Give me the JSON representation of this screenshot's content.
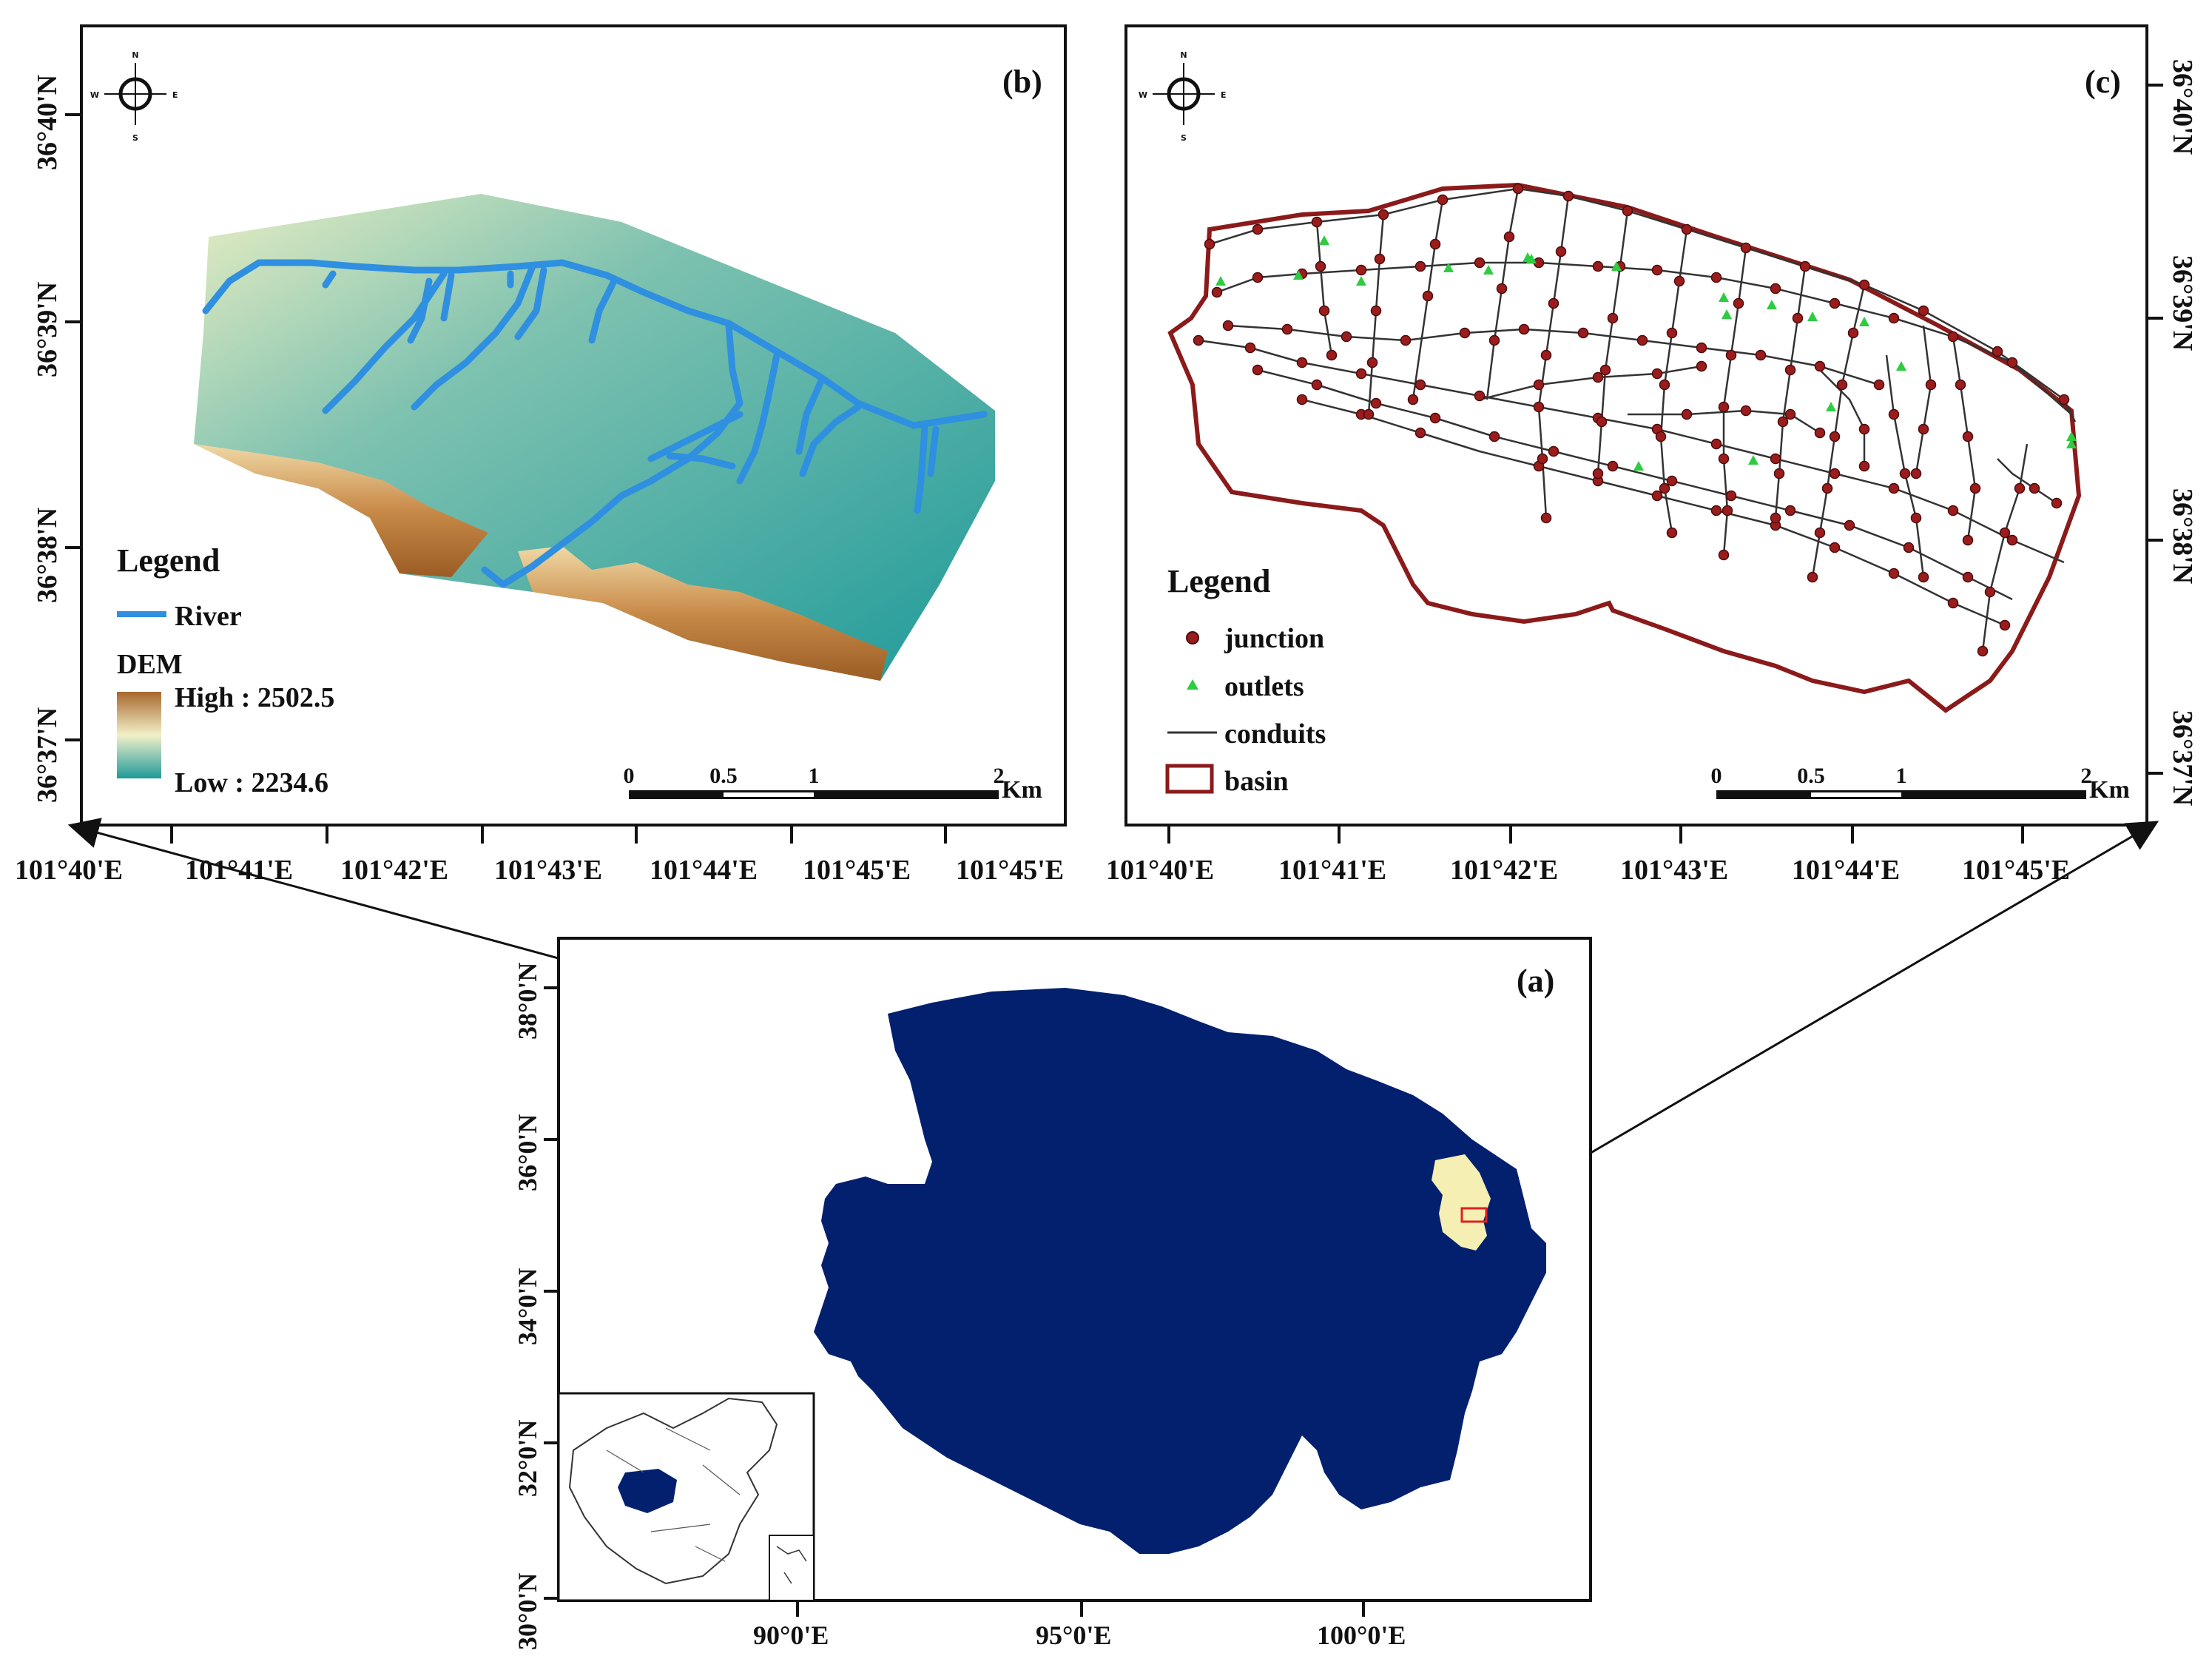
{
  "panel_b": {
    "label": "(b)",
    "legend_title": "Legend",
    "river_label": "River",
    "dem_label": "DEM",
    "dem_high": "High : 2502.5",
    "dem_low": "Low : 2234.6",
    "scale_ticks": [
      "0",
      "0.5",
      "1",
      "2"
    ],
    "scale_unit": "Km",
    "lon_labels": [
      "101°40'E",
      "101°41'E",
      "101°42'E",
      "101°43'E",
      "101°44'E",
      "101°45'E",
      "101°45'E"
    ],
    "lat_labels": [
      "36°40'N",
      "36°39'N",
      "36°38'N",
      "36°37'N"
    ],
    "colors": {
      "river": "#2f8fe0",
      "dem_high": "#a8682d",
      "dem_mid": "#f2f0c8",
      "dem_low": "#1f9a9a"
    }
  },
  "panel_c": {
    "label": "(c)",
    "legend_title": "Legend",
    "legend_items": [
      "junction",
      "outlets",
      "conduits",
      "basin"
    ],
    "scale_ticks": [
      "0",
      "0.5",
      "1",
      "2"
    ],
    "scale_unit": "Km",
    "lon_labels": [
      "101°40'E",
      "101°41'E",
      "101°42'E",
      "101°43'E",
      "101°44'E",
      "101°45'E"
    ],
    "lat_labels": [
      "36°40'N",
      "36°39'N",
      "36°38'N",
      "36°37'N"
    ],
    "colors": {
      "junction": "#9b1c1c",
      "outlet": "#2ecc40",
      "conduit": "#333333",
      "basin": "#8b1a1a"
    }
  },
  "panel_a": {
    "label": "(a)",
    "lat_labels": [
      "38°0'N",
      "36°0'N",
      "34°0'N",
      "32°0'N",
      "30°0'N"
    ],
    "lon_labels": [
      "90°0'E",
      "95°0'E",
      "100°0'E"
    ],
    "colors": {
      "province": "#02206e",
      "study_area": "#f5efb3",
      "box": "#e02020"
    }
  },
  "compass": {
    "n": "N",
    "s": "S",
    "e": "E",
    "w": "W"
  }
}
